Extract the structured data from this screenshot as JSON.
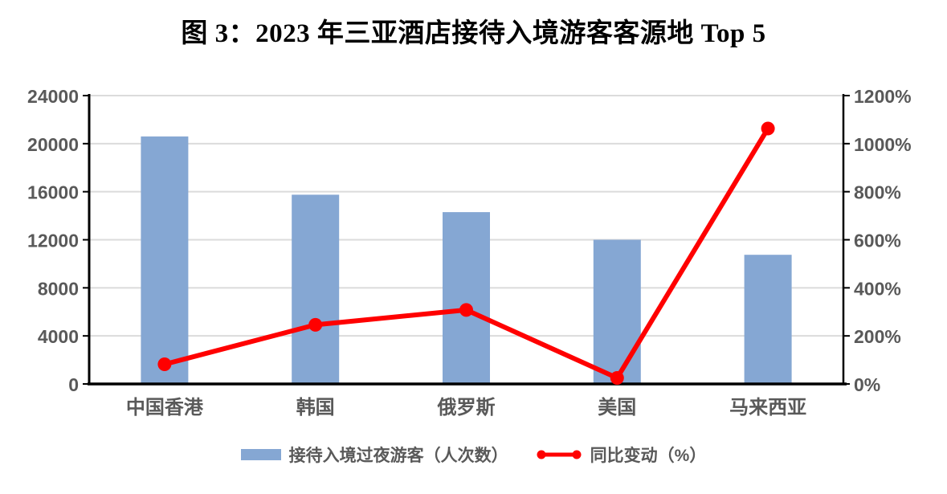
{
  "title": "图 3：2023 年三亚酒店接待入境游客客源地 Top 5",
  "colors": {
    "bar": "#85A7D3",
    "line": "#FF0000",
    "axis_text": "#595959",
    "gridline": "#DBDBDB",
    "axis_line": "#000000"
  },
  "chart_data": {
    "type": "combo",
    "title": "图 3：2023 年三亚酒店接待入境游客客源地 Top 5",
    "categories": [
      "中国香港",
      "韩国",
      "俄罗斯",
      "美国",
      "马来西亚"
    ],
    "series": [
      {
        "name": "接待入境过夜游客（人次数）",
        "type": "bar",
        "axis": "left",
        "values": [
          20600,
          15750,
          14300,
          12000,
          10750
        ]
      },
      {
        "name": "同比变动（%）",
        "type": "line",
        "axis": "right",
        "values": [
          82,
          246,
          308,
          25,
          1063
        ]
      }
    ],
    "left_axis": {
      "min": 0,
      "max": 24000,
      "step": 4000,
      "tick_labels": [
        "0",
        "4000",
        "8000",
        "12000",
        "16000",
        "20000",
        "24000"
      ]
    },
    "right_axis": {
      "min": 0,
      "max": 1200,
      "step": 200,
      "unit": "%",
      "tick_labels": [
        "0%",
        "200%",
        "400%",
        "600%",
        "800%",
        "1000%",
        "1200%"
      ]
    },
    "grid": true,
    "legend_position": "bottom"
  }
}
